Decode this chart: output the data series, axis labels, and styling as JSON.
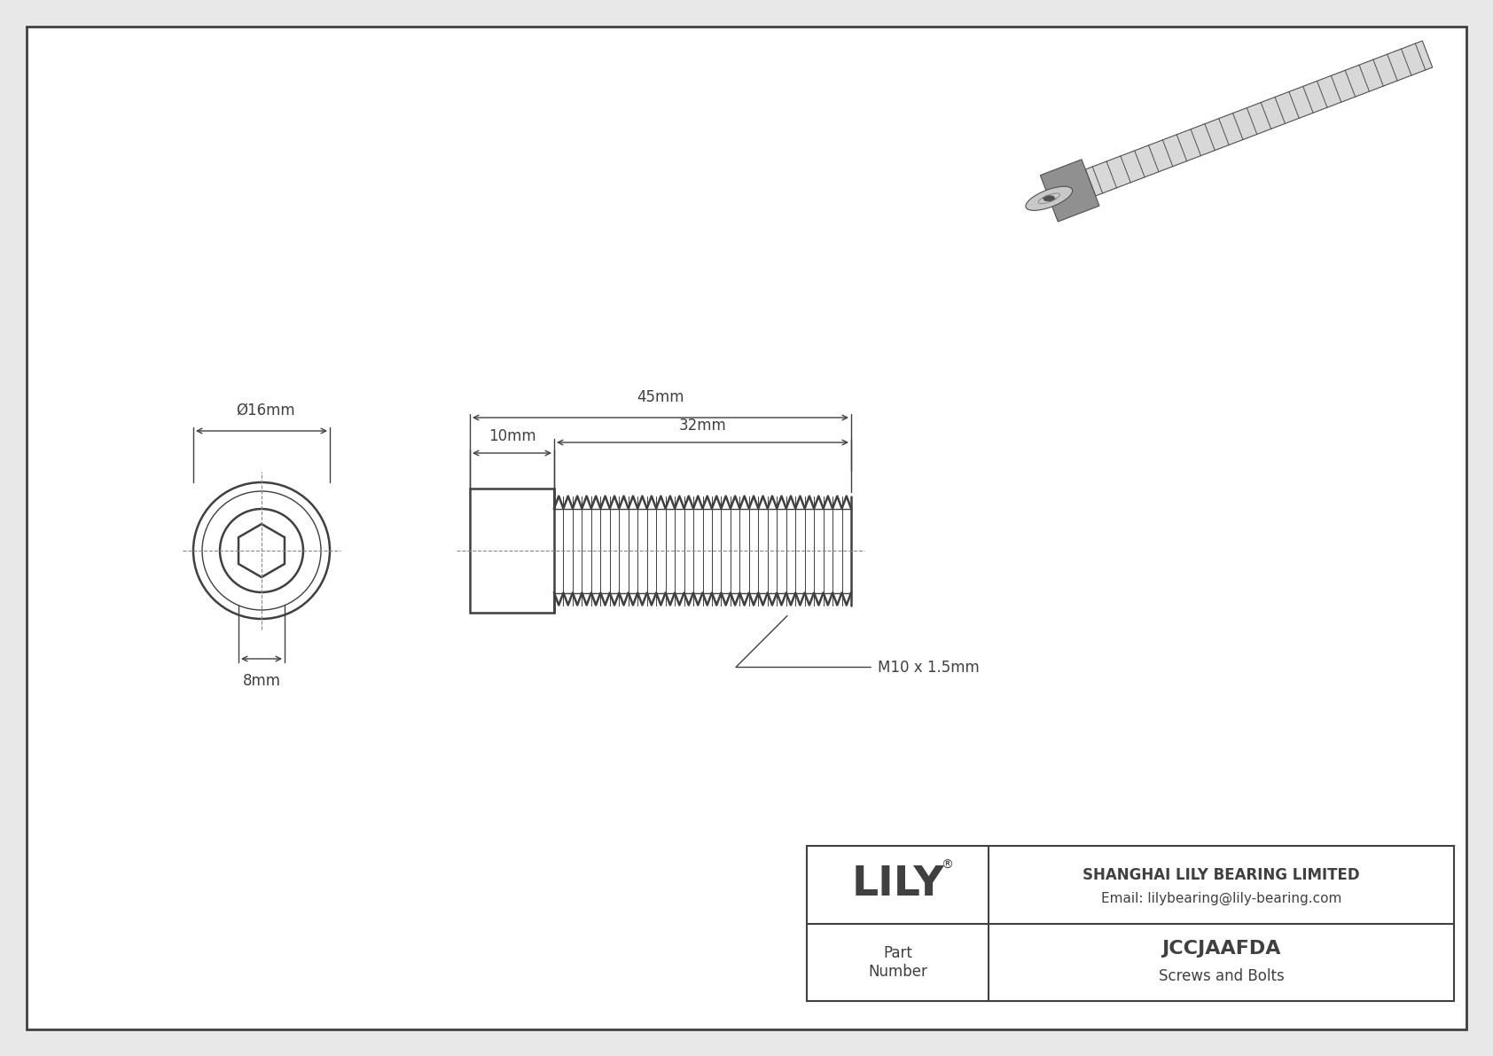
{
  "bg_color": "#e8e8e8",
  "line_color": "#404040",
  "dim_color": "#404040",
  "white": "#ffffff",
  "title_box": {
    "company": "SHANGHAI LILY BEARING LIMITED",
    "email": "Email: lilybearing@lily-bearing.com",
    "part_label": "Part\nNumber",
    "part_number": "JCCJAAFDA",
    "category": "Screws and Bolts",
    "logo": "LILY",
    "registered": "®"
  },
  "dimensions": {
    "outer_diameter": "Ø16mm",
    "hex_key": "8mm",
    "head_length": "10mm",
    "thread_length": "32mm",
    "total_length": "45mm",
    "thread_spec": "M10 x 1.5mm"
  }
}
